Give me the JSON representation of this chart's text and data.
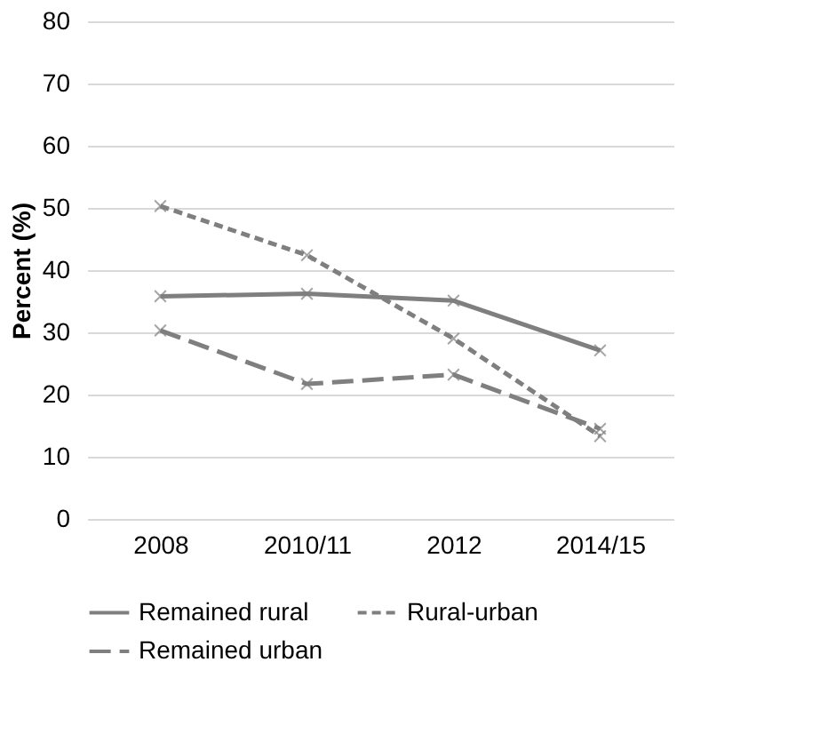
{
  "chart_data": {
    "type": "line",
    "ylabel": "Percent (%)",
    "categories": [
      "2008",
      "2010/11",
      "2012",
      "2014/15"
    ],
    "series": [
      {
        "name": "Remained rural",
        "color": "#7f7f7f",
        "line_style": "solid",
        "values": [
          35.8,
          36.2,
          35.1,
          27.1
        ]
      },
      {
        "name": "Rural-urban",
        "color": "#7f7f7f",
        "line_style": "dashed",
        "values": [
          50.3,
          42.4,
          29.0,
          13.3
        ]
      },
      {
        "name": "Remained urban",
        "color": "#7f7f7f",
        "line_style": "longdash",
        "values": [
          30.3,
          21.7,
          23.2,
          14.5
        ]
      }
    ],
    "ylim": [
      0,
      80
    ],
    "yticks": [
      0,
      10,
      20,
      30,
      40,
      50,
      60,
      70,
      80
    ],
    "grid": "y",
    "legend": "bottom",
    "marker": "cross"
  }
}
